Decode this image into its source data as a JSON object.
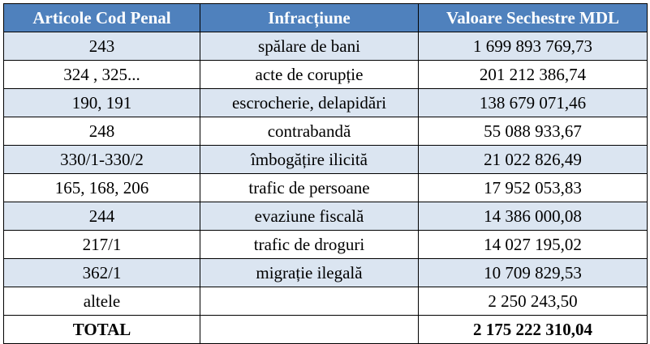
{
  "table": {
    "headers": [
      "Articole Cod Penal",
      "Infracțiune",
      "Valoare Sechestre MDL"
    ],
    "rows": [
      {
        "articole": "243",
        "infractiune": "spălare de bani",
        "valoare": "1 699 893 769,73"
      },
      {
        "articole": "324 , 325...",
        "infractiune": "acte de corupție",
        "valoare": "201 212 386,74"
      },
      {
        "articole": "190, 191",
        "infractiune": "escrocherie, delapidări",
        "valoare": "138 679 071,46"
      },
      {
        "articole": "248",
        "infractiune": "contrabandă",
        "valoare": "55 088 933,67"
      },
      {
        "articole": "330/1-330/2",
        "infractiune": "îmbogățire ilicită",
        "valoare": "21 022 826,49"
      },
      {
        "articole": "165, 168, 206",
        "infractiune": "trafic de persoane",
        "valoare": "17 952 053,83"
      },
      {
        "articole": "244",
        "infractiune": "evaziune fiscală",
        "valoare": "14 386 000,08"
      },
      {
        "articole": "217/1",
        "infractiune": "trafic de droguri",
        "valoare": "14 027 195,02"
      },
      {
        "articole": "362/1",
        "infractiune": "migrație ilegală",
        "valoare": "10 709 829,53"
      },
      {
        "articole": "altele",
        "infractiune": "",
        "valoare": "2 250 243,50"
      }
    ],
    "total": {
      "label": "TOTAL",
      "infractiune": "",
      "valoare": "2 175 222 310,04"
    }
  },
  "colors": {
    "header_bg": "#4f81bd",
    "header_text": "#ffffff",
    "band_bg": "#dbe5f1",
    "plain_bg": "#ffffff",
    "border": "#000000"
  }
}
